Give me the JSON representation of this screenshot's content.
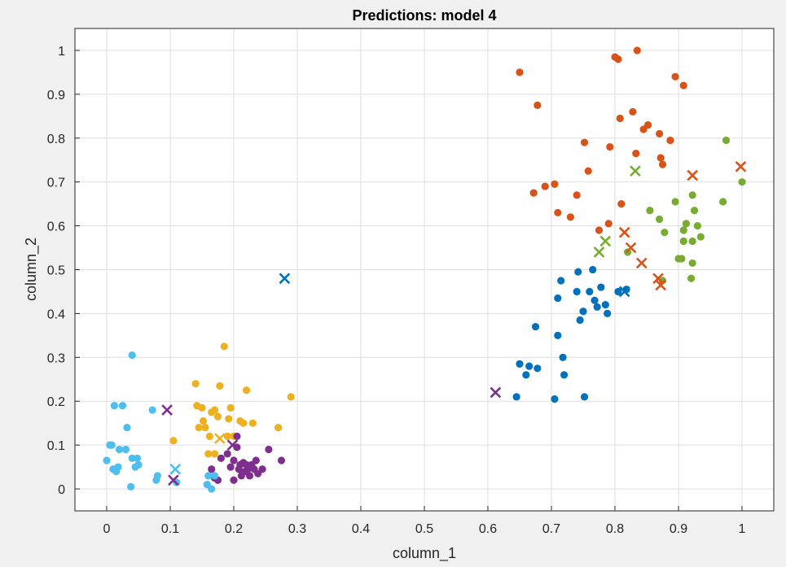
{
  "chart_data": {
    "type": "scatter",
    "title": "Predictions: model 4",
    "xlabel": "column_1",
    "ylabel": "column_2",
    "xlim": [
      -0.05,
      1.05
    ],
    "ylim": [
      -0.05,
      1.05
    ],
    "xticks": [
      0,
      0.1,
      0.2,
      0.3,
      0.4,
      0.5,
      0.6,
      0.7,
      0.8,
      0.9,
      1
    ],
    "yticks": [
      0,
      0.1,
      0.2,
      0.3,
      0.4,
      0.5,
      0.6,
      0.7,
      0.8,
      0.9,
      1
    ],
    "grid": true,
    "legend": "none",
    "series": [
      {
        "color": "#0072BD",
        "points": [
          [
            0.645,
            0.21
          ],
          [
            0.65,
            0.285
          ],
          [
            0.66,
            0.26
          ],
          [
            0.665,
            0.28
          ],
          [
            0.675,
            0.37
          ],
          [
            0.678,
            0.275
          ],
          [
            0.705,
            0.205
          ],
          [
            0.71,
            0.35
          ],
          [
            0.71,
            0.435
          ],
          [
            0.715,
            0.475
          ],
          [
            0.718,
            0.3
          ],
          [
            0.72,
            0.26
          ],
          [
            0.74,
            0.45
          ],
          [
            0.742,
            0.495
          ],
          [
            0.745,
            0.385
          ],
          [
            0.75,
            0.405
          ],
          [
            0.752,
            0.21
          ],
          [
            0.76,
            0.45
          ],
          [
            0.765,
            0.5
          ],
          [
            0.768,
            0.43
          ],
          [
            0.772,
            0.415
          ],
          [
            0.778,
            0.46
          ],
          [
            0.785,
            0.42
          ],
          [
            0.788,
            0.4
          ],
          [
            0.805,
            0.45
          ],
          [
            0.818,
            0.455
          ]
        ],
        "crosses": [
          [
            0.28,
            0.48
          ],
          [
            0.815,
            0.45
          ]
        ]
      },
      {
        "color": "#D95319",
        "points": [
          [
            0.65,
            0.95
          ],
          [
            0.672,
            0.675
          ],
          [
            0.678,
            0.875
          ],
          [
            0.69,
            0.69
          ],
          [
            0.705,
            0.695
          ],
          [
            0.71,
            0.63
          ],
          [
            0.73,
            0.62
          ],
          [
            0.74,
            0.67
          ],
          [
            0.752,
            0.79
          ],
          [
            0.758,
            0.725
          ],
          [
            0.775,
            0.59
          ],
          [
            0.79,
            0.605
          ],
          [
            0.792,
            0.78
          ],
          [
            0.8,
            0.985
          ],
          [
            0.805,
            0.98
          ],
          [
            0.808,
            0.845
          ],
          [
            0.81,
            0.65
          ],
          [
            0.828,
            0.86
          ],
          [
            0.833,
            0.765
          ],
          [
            0.835,
            1.0
          ],
          [
            0.845,
            0.82
          ],
          [
            0.852,
            0.83
          ],
          [
            0.87,
            0.81
          ],
          [
            0.872,
            0.755
          ],
          [
            0.875,
            0.74
          ],
          [
            0.887,
            0.795
          ],
          [
            0.895,
            0.94
          ],
          [
            0.908,
            0.92
          ]
        ],
        "crosses": [
          [
            0.815,
            0.585
          ],
          [
            0.825,
            0.55
          ],
          [
            0.842,
            0.515
          ],
          [
            0.868,
            0.48
          ],
          [
            0.872,
            0.465
          ],
          [
            0.922,
            0.715
          ],
          [
            0.998,
            0.735
          ]
        ]
      },
      {
        "color": "#EDB120",
        "points": [
          [
            0.105,
            0.11
          ],
          [
            0.14,
            0.24
          ],
          [
            0.142,
            0.19
          ],
          [
            0.145,
            0.14
          ],
          [
            0.15,
            0.185
          ],
          [
            0.152,
            0.155
          ],
          [
            0.155,
            0.14
          ],
          [
            0.16,
            0.08
          ],
          [
            0.162,
            0.12
          ],
          [
            0.165,
            0.175
          ],
          [
            0.17,
            0.18
          ],
          [
            0.17,
            0.08
          ],
          [
            0.175,
            0.165
          ],
          [
            0.178,
            0.235
          ],
          [
            0.185,
            0.325
          ],
          [
            0.19,
            0.12
          ],
          [
            0.192,
            0.16
          ],
          [
            0.195,
            0.185
          ],
          [
            0.2,
            0.12
          ],
          [
            0.21,
            0.155
          ],
          [
            0.215,
            0.15
          ],
          [
            0.22,
            0.225
          ],
          [
            0.23,
            0.15
          ],
          [
            0.27,
            0.14
          ],
          [
            0.29,
            0.21
          ]
        ],
        "crosses": [
          [
            0.178,
            0.115
          ]
        ]
      },
      {
        "color": "#7E2F8E",
        "points": [
          [
            0.165,
            0.045
          ],
          [
            0.17,
            0.025
          ],
          [
            0.175,
            0.02
          ],
          [
            0.18,
            0.07
          ],
          [
            0.19,
            0.08
          ],
          [
            0.195,
            0.05
          ],
          [
            0.2,
            0.065
          ],
          [
            0.2,
            0.02
          ],
          [
            0.205,
            0.12
          ],
          [
            0.205,
            0.095
          ],
          [
            0.208,
            0.045
          ],
          [
            0.21,
            0.055
          ],
          [
            0.212,
            0.03
          ],
          [
            0.215,
            0.06
          ],
          [
            0.218,
            0.04
          ],
          [
            0.22,
            0.055
          ],
          [
            0.222,
            0.045
          ],
          [
            0.225,
            0.03
          ],
          [
            0.228,
            0.055
          ],
          [
            0.232,
            0.045
          ],
          [
            0.235,
            0.065
          ],
          [
            0.238,
            0.035
          ],
          [
            0.245,
            0.045
          ],
          [
            0.255,
            0.09
          ],
          [
            0.275,
            0.065
          ]
        ],
        "crosses": [
          [
            0.095,
            0.18
          ],
          [
            0.105,
            0.02
          ],
          [
            0.198,
            0.1
          ],
          [
            0.612,
            0.22
          ]
        ]
      },
      {
        "color": "#77AC30",
        "points": [
          [
            0.82,
            0.54
          ],
          [
            0.855,
            0.635
          ],
          [
            0.87,
            0.615
          ],
          [
            0.875,
            0.475
          ],
          [
            0.878,
            0.585
          ],
          [
            0.895,
            0.655
          ],
          [
            0.9,
            0.525
          ],
          [
            0.905,
            0.525
          ],
          [
            0.908,
            0.59
          ],
          [
            0.908,
            0.565
          ],
          [
            0.912,
            0.605
          ],
          [
            0.92,
            0.48
          ],
          [
            0.922,
            0.565
          ],
          [
            0.922,
            0.515
          ],
          [
            0.922,
            0.67
          ],
          [
            0.925,
            0.635
          ],
          [
            0.93,
            0.6
          ],
          [
            0.935,
            0.575
          ],
          [
            0.97,
            0.655
          ],
          [
            0.975,
            0.795
          ],
          [
            1.0,
            0.7
          ]
        ],
        "crosses": [
          [
            0.775,
            0.54
          ],
          [
            0.785,
            0.565
          ],
          [
            0.832,
            0.725
          ]
        ]
      },
      {
        "color": "#4DBEEE",
        "points": [
          [
            0.0,
            0.065
          ],
          [
            0.005,
            0.1
          ],
          [
            0.008,
            0.1
          ],
          [
            0.01,
            0.045
          ],
          [
            0.012,
            0.19
          ],
          [
            0.015,
            0.04
          ],
          [
            0.018,
            0.05
          ],
          [
            0.02,
            0.09
          ],
          [
            0.025,
            0.19
          ],
          [
            0.03,
            0.09
          ],
          [
            0.032,
            0.14
          ],
          [
            0.038,
            0.005
          ],
          [
            0.04,
            0.305
          ],
          [
            0.04,
            0.07
          ],
          [
            0.045,
            0.05
          ],
          [
            0.048,
            0.07
          ],
          [
            0.05,
            0.055
          ],
          [
            0.072,
            0.18
          ],
          [
            0.078,
            0.02
          ],
          [
            0.08,
            0.03
          ],
          [
            0.11,
            0.015
          ],
          [
            0.158,
            0.01
          ],
          [
            0.16,
            0.03
          ],
          [
            0.165,
            0.0
          ],
          [
            0.17,
            0.03
          ]
        ],
        "crosses": [
          [
            0.108,
            0.045
          ]
        ]
      }
    ]
  }
}
